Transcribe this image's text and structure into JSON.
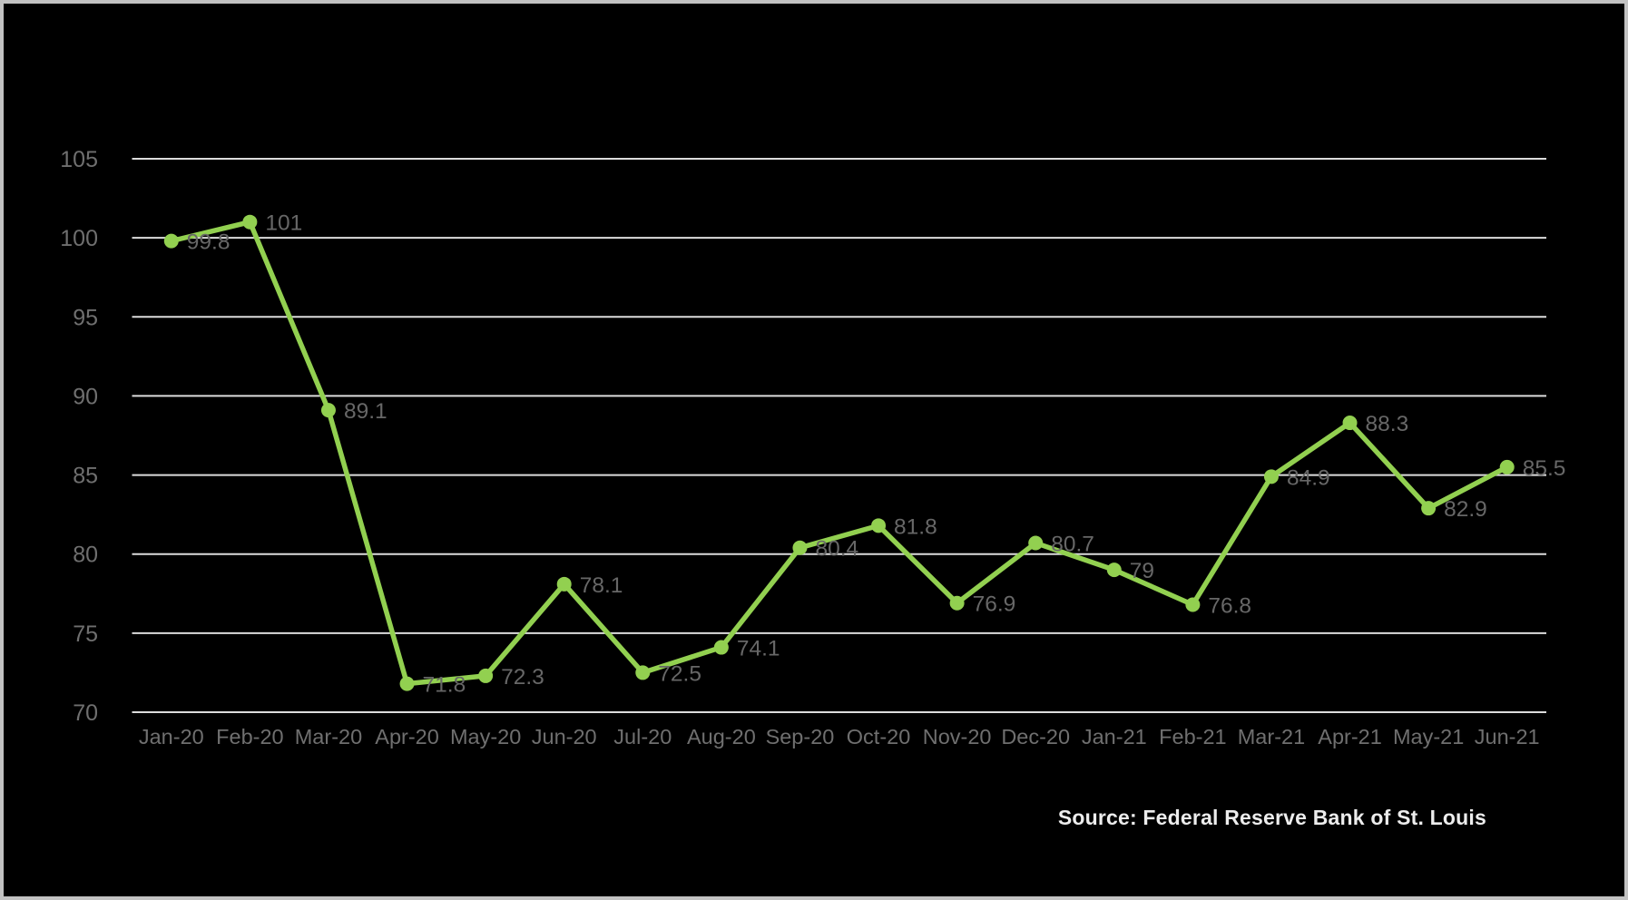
{
  "chart_data": {
    "type": "line",
    "title": "",
    "xlabel": "",
    "ylabel": "",
    "categories": [
      "Jan-20",
      "Feb-20",
      "Mar-20",
      "Apr-20",
      "May-20",
      "Jun-20",
      "Jul-20",
      "Aug-20",
      "Sep-20",
      "Oct-20",
      "Nov-20",
      "Dec-20",
      "Jan-21",
      "Feb-21",
      "Mar-21",
      "Apr-21",
      "May-21",
      "Jun-21"
    ],
    "values": [
      99.8,
      101,
      89.1,
      71.8,
      72.3,
      78.1,
      72.5,
      74.1,
      80.4,
      81.8,
      76.9,
      80.7,
      79,
      76.8,
      84.9,
      88.3,
      82.9,
      85.5
    ],
    "ylim": [
      70,
      105
    ],
    "ytick_step": 5,
    "yticks": [
      70,
      75,
      80,
      85,
      90,
      95,
      100,
      105
    ],
    "grid": "horizontal",
    "legend": "none",
    "data_labels_position": "right-of-point",
    "colors": {
      "background": "#000000",
      "frame_border": "#c2c2c2",
      "gridline": "#dcdcdc",
      "line": "#92d050",
      "marker": "#92d050",
      "axis_tick_label": "#6f6f6f",
      "data_label": "#676767",
      "source_text": "#ededed"
    }
  },
  "footer": {
    "source_label": "Source: Federal Reserve Bank of St. Louis"
  }
}
